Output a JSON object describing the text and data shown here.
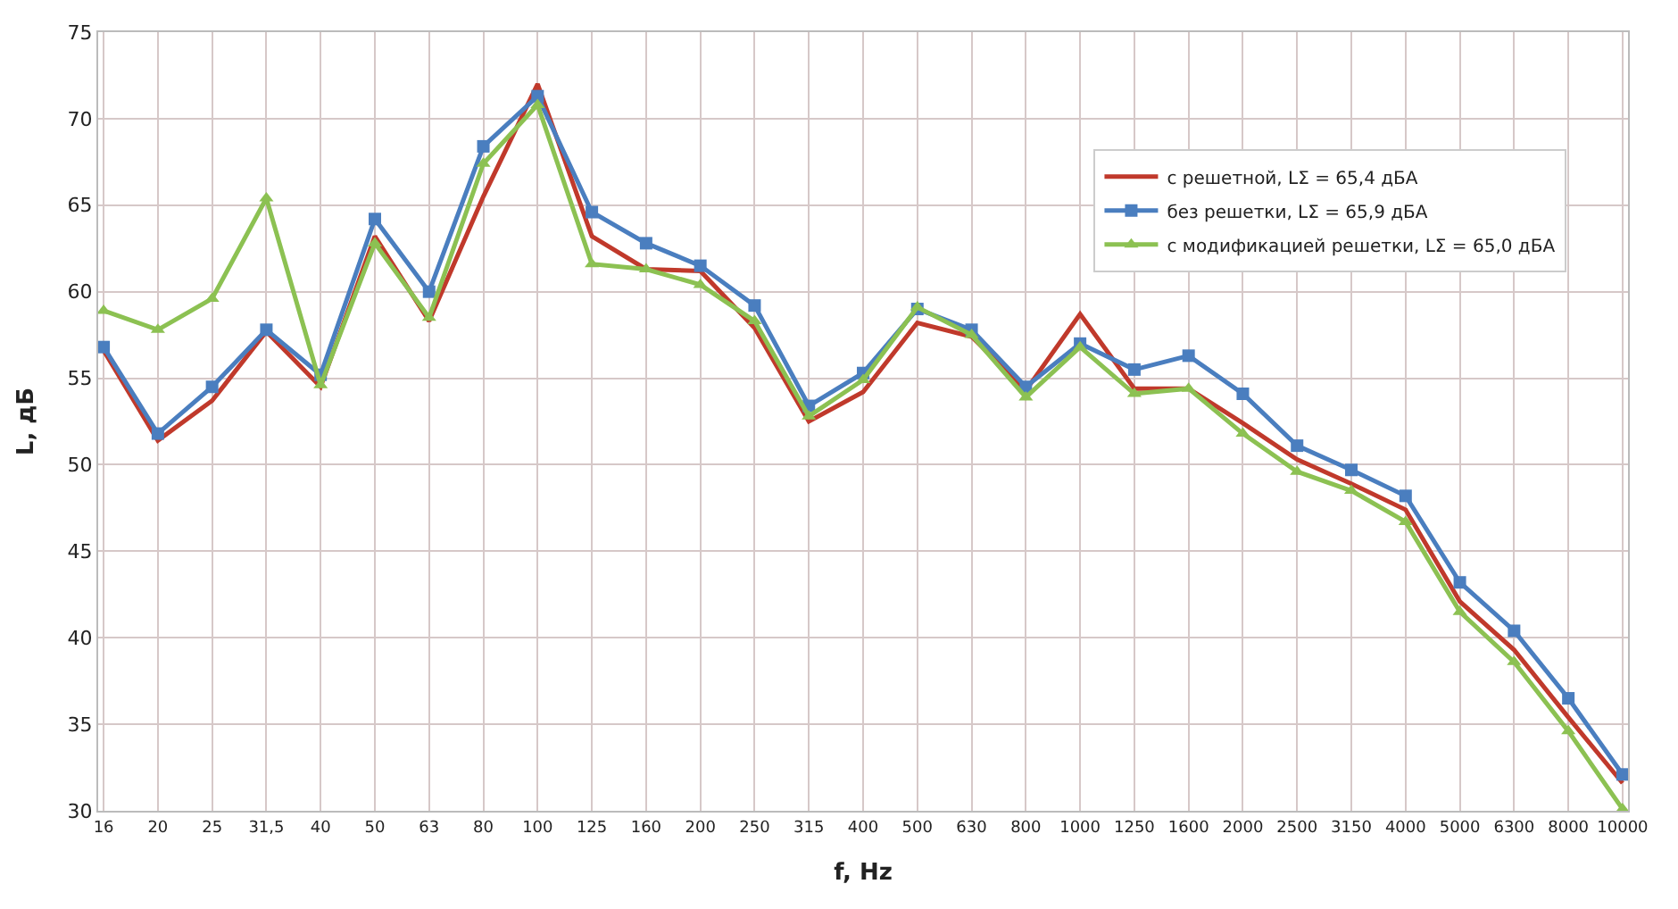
{
  "chart_data": {
    "type": "line",
    "xlabel": "f, Hz",
    "ylabel": "L, дБ",
    "categories": [
      "16",
      "20",
      "25",
      "31,5",
      "40",
      "50",
      "63",
      "80",
      "100",
      "125",
      "160",
      "200",
      "250",
      "315",
      "400",
      "500",
      "630",
      "800",
      "1000",
      "1250",
      "1600",
      "2000",
      "2500",
      "3150",
      "4000",
      "5000",
      "6300",
      "8000",
      "10000"
    ],
    "ylim": [
      30,
      75
    ],
    "yticks": [
      30,
      35,
      40,
      45,
      50,
      55,
      60,
      65,
      70,
      75
    ],
    "grid": true,
    "legend": "top right",
    "line_style": "solid",
    "series": [
      {
        "name": "с решетной, LΣ = 65,4 дБА",
        "color": "#c0392b",
        "marker": "none",
        "values": [
          56.6,
          51.4,
          53.7,
          57.7,
          54.5,
          63.2,
          58.3,
          65.5,
          72.0,
          63.2,
          61.3,
          61.2,
          57.9,
          52.5,
          54.2,
          58.2,
          57.4,
          54.3,
          58.7,
          54.4,
          54.4,
          52.4,
          50.3,
          48.9,
          47.4,
          42.1,
          39.3,
          35.4,
          31.6
        ]
      },
      {
        "name": "без решетки, LΣ = 65,9 дБА",
        "color": "#4a7ebf",
        "marker": "square",
        "values": [
          56.8,
          51.8,
          54.5,
          57.8,
          55.2,
          64.2,
          60.0,
          68.4,
          71.3,
          64.6,
          62.8,
          61.5,
          59.2,
          53.4,
          55.3,
          59.0,
          57.8,
          54.5,
          57.0,
          55.5,
          56.3,
          54.1,
          51.1,
          49.7,
          48.2,
          43.2,
          40.4,
          36.5,
          32.1
        ]
      },
      {
        "name": "с модификацией решетки, LΣ = 65,0 дБА",
        "color": "#8cc152",
        "marker": "triangle",
        "values": [
          58.9,
          57.8,
          59.6,
          65.4,
          54.6,
          62.8,
          58.5,
          67.4,
          70.8,
          61.6,
          61.3,
          60.4,
          58.3,
          52.8,
          54.9,
          59.1,
          57.5,
          53.9,
          56.8,
          54.1,
          54.4,
          51.8,
          49.6,
          48.5,
          46.7,
          41.5,
          38.6,
          34.6,
          30.1
        ]
      }
    ]
  }
}
